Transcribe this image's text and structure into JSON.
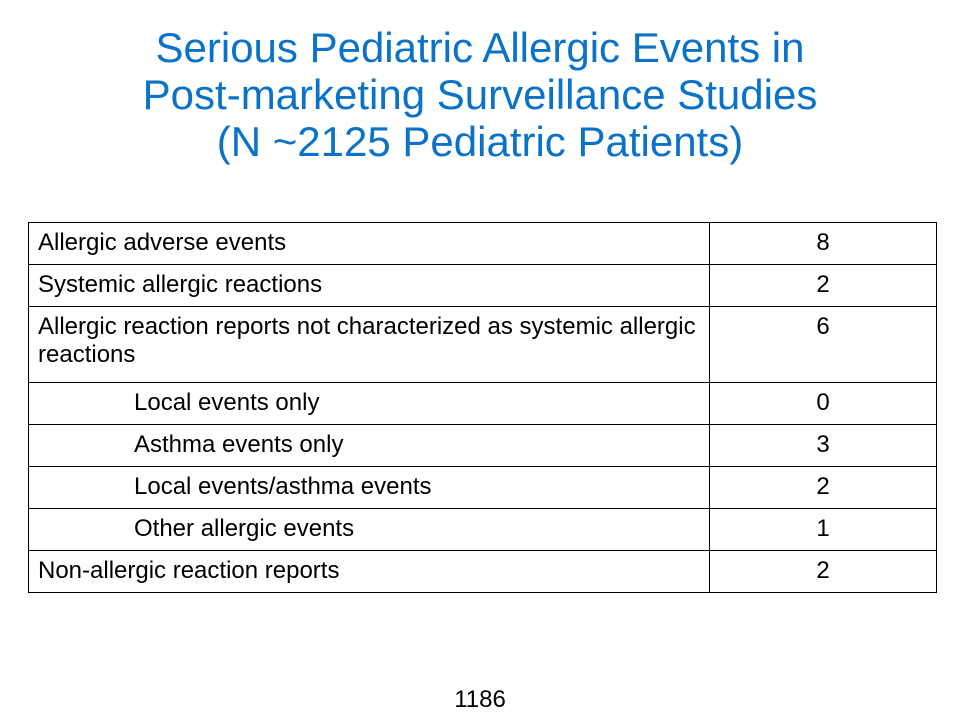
{
  "title": {
    "line1": "Serious Pediatric Allergic Events in",
    "line2": "Post-marketing Surveillance Studies",
    "line3": "(N ~2125 Pediatric Patients)"
  },
  "table": {
    "rows": [
      {
        "label": "Allergic adverse events",
        "value": "8"
      },
      {
        "label": "Systemic allergic reactions",
        "value": "2"
      },
      {
        "label": "Allergic reaction reports not characterized as systemic allergic reactions",
        "value": "6"
      },
      {
        "label": "Local events only",
        "value": "0"
      },
      {
        "label": "Asthma events only",
        "value": "3"
      },
      {
        "label": "Local events/asthma events",
        "value": "2"
      },
      {
        "label": "Other allergic events",
        "value": "1"
      },
      {
        "label": "Non-allergic reaction reports",
        "value": "2"
      }
    ]
  },
  "footer": {
    "page_number": "1186"
  },
  "colors": {
    "title": "#0b72c9",
    "text": "#000000",
    "border": "#000000",
    "background": "#ffffff"
  }
}
